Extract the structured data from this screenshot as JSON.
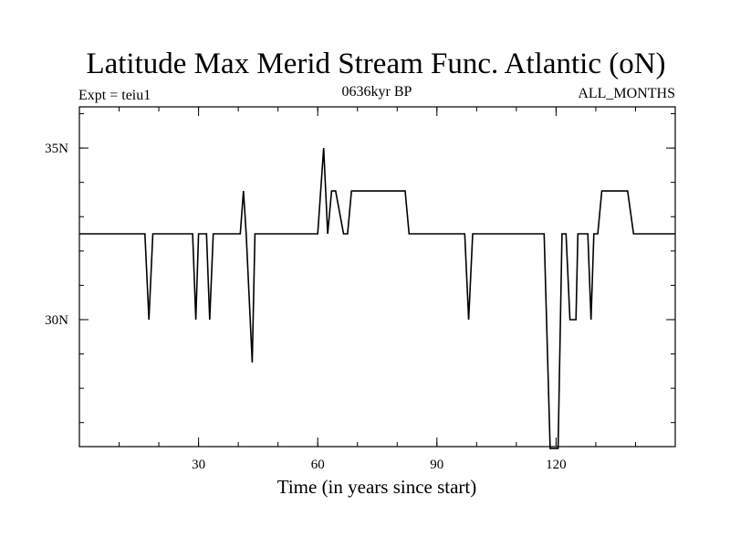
{
  "chart_data": {
    "type": "line",
    "title": "Latitude Max Merid Stream Func. Atlantic (oN)",
    "subtitle_left": "Expt = teiu1",
    "subtitle_center": "0636kyr BP",
    "subtitle_right": "ALL_MONTHS",
    "xlabel": "Time (in years since start)",
    "ylabel": "",
    "xlim": [
      0,
      150
    ],
    "ylim": [
      26.3,
      36.2
    ],
    "x_ticks": [
      30,
      60,
      90,
      120
    ],
    "x_tick_labels": [
      "30",
      "60",
      "90",
      "120"
    ],
    "y_ticks": [
      30,
      35
    ],
    "y_tick_labels": [
      "30N",
      "35N"
    ],
    "grid": false,
    "series": [
      {
        "color": "#000000",
        "x": [
          0,
          16.5,
          17.5,
          18.5,
          28.5,
          29.3,
          30,
          32,
          32.8,
          33.7,
          40.5,
          41.3,
          42,
          43.5,
          44.2,
          45,
          60,
          61.5,
          62.5,
          63.5,
          64.5,
          66.5,
          67.5,
          68.5,
          69.5,
          82,
          83,
          97,
          98,
          99,
          117,
          118.5,
          120.5,
          121.5,
          122.5,
          123.5,
          125,
          125.5,
          126.5,
          128,
          128.8,
          129.5,
          130.5,
          131.5,
          132.5,
          138,
          139.5,
          150
        ],
        "y": [
          32.5,
          32.5,
          30,
          32.5,
          32.5,
          30,
          32.5,
          32.5,
          30,
          32.5,
          32.5,
          33.75,
          32.5,
          28.75,
          32.5,
          32.5,
          32.5,
          35,
          32.5,
          33.75,
          33.75,
          32.5,
          32.5,
          33.75,
          33.75,
          33.75,
          32.5,
          32.5,
          30,
          32.5,
          32.5,
          26.25,
          26.25,
          32.5,
          32.5,
          30,
          30,
          32.5,
          32.5,
          32.5,
          30,
          32.5,
          32.5,
          33.75,
          33.75,
          33.75,
          32.5,
          32.5
        ]
      }
    ]
  }
}
